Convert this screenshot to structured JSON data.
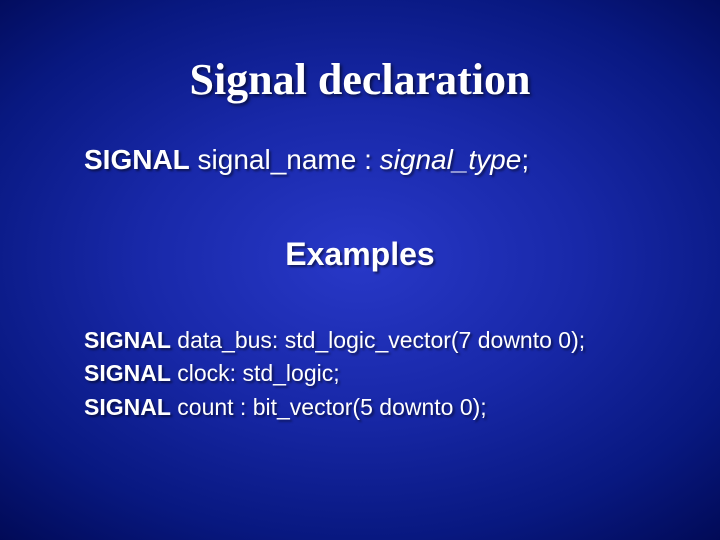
{
  "slide": {
    "background_gradient": {
      "type": "radial",
      "center_color": "#2838c8",
      "mid_color": "#081880",
      "edge_color": "#000020"
    },
    "text_color": "#ffffff",
    "title": {
      "text": "Signal declaration",
      "font_family": "Times New Roman",
      "font_size_pt": 44,
      "font_weight": "bold"
    },
    "syntax_line": {
      "keyword": "SIGNAL",
      "name": " signal_name : ",
      "type_italic": "signal_type",
      "terminator": ";",
      "font_size_pt": 28
    },
    "subheading": {
      "text": "Examples",
      "font_size_pt": 32,
      "font_weight": "bold"
    },
    "examples": {
      "font_size_pt": 23,
      "lines": [
        {
          "keyword": "SIGNAL",
          "rest": " data_bus: std_logic_vector(7 downto 0);"
        },
        {
          "keyword": "SIGNAL",
          "rest": " clock: std_logic;"
        },
        {
          "keyword": "SIGNAL",
          "rest": " count : bit_vector(5 downto 0);"
        }
      ]
    }
  }
}
